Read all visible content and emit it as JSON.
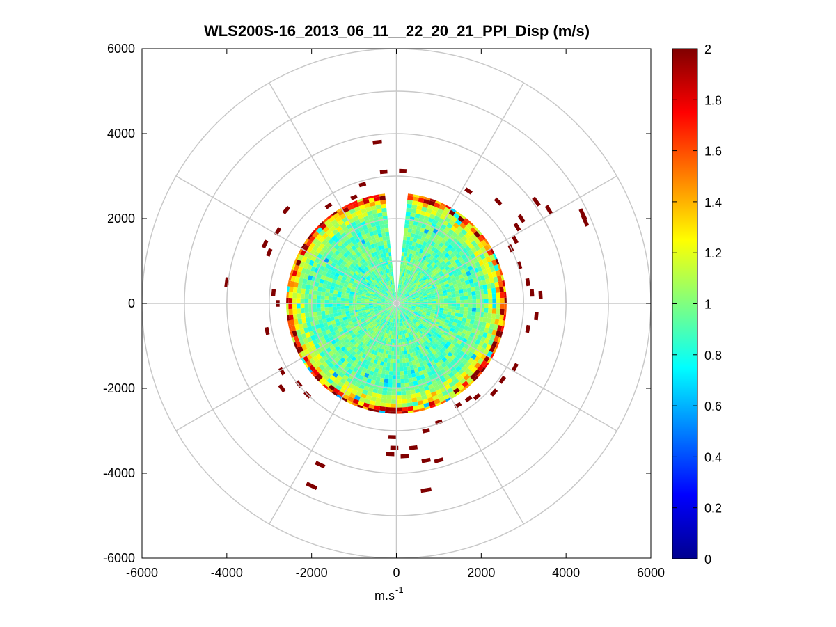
{
  "chart_data": {
    "type": "heatmap",
    "subtype": "polar-ppi",
    "title": "WLS200S-16_2013_06_11__22_20_21_PPI_Disp (m/s)",
    "xlabel": "m.s",
    "xlabel_sup": "-1",
    "ylabel": "",
    "xlim": [
      -6000,
      6000
    ],
    "ylim": [
      -6000,
      6000
    ],
    "x_ticks": [
      "-6000",
      "-4000",
      "-2000",
      "0",
      "2000",
      "4000",
      "6000"
    ],
    "y_ticks": [
      "6000",
      "4000",
      "2000",
      "0",
      "-2000",
      "-4000",
      "-6000"
    ],
    "polar_grid": {
      "ring_ranges": [
        1000,
        2000,
        3000,
        4000,
        5000,
        6000
      ],
      "spoke_angles_deg": [
        0,
        30,
        60,
        90,
        120,
        150,
        180,
        210,
        240,
        270,
        300,
        330
      ]
    },
    "data_extent": {
      "max_range": 2600,
      "gap_azimuth_deg": [
        -6,
        6
      ]
    },
    "colorbar": {
      "min": 0,
      "max": 2,
      "colormap": "jet",
      "ticks": [
        "2",
        "1.8",
        "1.6",
        "1.4",
        "1.2",
        "1",
        "0.8",
        "0.6",
        "0.4",
        "0.2",
        "0"
      ]
    },
    "outlier_value": 2,
    "outliers": [
      [
        -450,
        3800
      ],
      [
        -300,
        3100
      ],
      [
        150,
        3120
      ],
      [
        -1000,
        2500
      ],
      [
        -1600,
        2300
      ],
      [
        -2600,
        2200
      ],
      [
        -2800,
        1700
      ],
      [
        -3100,
        1400
      ],
      [
        -3000,
        1200
      ],
      [
        -4000,
        500
      ],
      [
        -2900,
        250
      ],
      [
        -2800,
        0
      ],
      [
        -3050,
        -650
      ],
      [
        -2700,
        -1600
      ],
      [
        -2300,
        -1900
      ],
      [
        -2700,
        -2000
      ],
      [
        -2100,
        -2150
      ],
      [
        -100,
        -3150
      ],
      [
        -50,
        -3400
      ],
      [
        200,
        -3600
      ],
      [
        700,
        -3700
      ],
      [
        400,
        -3400
      ],
      [
        700,
        -3000
      ],
      [
        1000,
        -2800
      ],
      [
        1450,
        -2400
      ],
      [
        1700,
        -2250
      ],
      [
        1900,
        -2200
      ],
      [
        2300,
        -2100
      ],
      [
        2500,
        -1800
      ],
      [
        2800,
        -1500
      ],
      [
        3100,
        -600
      ],
      [
        3300,
        -300
      ],
      [
        3400,
        200
      ],
      [
        3200,
        250
      ],
      [
        3100,
        500
      ],
      [
        2900,
        900
      ],
      [
        2700,
        1300
      ],
      [
        2800,
        1500
      ],
      [
        2850,
        1800
      ],
      [
        2950,
        2000
      ],
      [
        3300,
        2400
      ],
      [
        3600,
        2200
      ],
      [
        4450,
        1950
      ],
      [
        4400,
        2100
      ],
      [
        1700,
        2650
      ],
      [
        2400,
        2400
      ],
      [
        1000,
        -3700
      ],
      [
        -2000,
        -4300
      ],
      [
        700,
        -4400
      ],
      [
        -150,
        -3550
      ],
      [
        -800,
        2800
      ],
      [
        -1800,
        -3800
      ]
    ]
  }
}
